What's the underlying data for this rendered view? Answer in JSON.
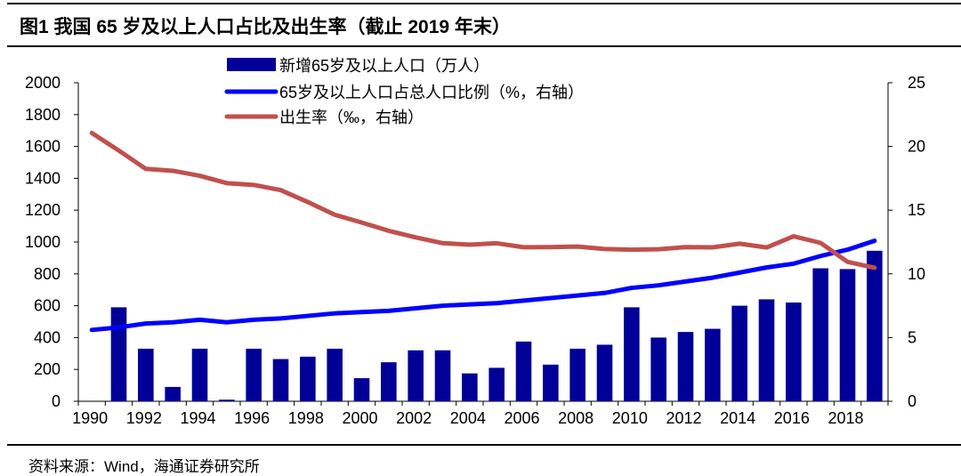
{
  "title": "图1  我国 65 岁及以上人口占比及出生率（截止 2019 年末）",
  "source": "资料来源：Wind，海通证券研究所",
  "chart_data": {
    "type": "bar+line",
    "categories": [
      "1990",
      "1991",
      "1992",
      "1993",
      "1994",
      "1995",
      "1996",
      "1997",
      "1998",
      "1999",
      "2000",
      "2001",
      "2002",
      "2003",
      "2004",
      "2005",
      "2006",
      "2007",
      "2008",
      "2009",
      "2010",
      "2011",
      "2012",
      "2013",
      "2014",
      "2015",
      "2016",
      "2017",
      "2018",
      "2019"
    ],
    "x_tick_labels": [
      "1990",
      "1992",
      "1994",
      "1996",
      "1998",
      "2000",
      "2002",
      "2004",
      "2006",
      "2008",
      "2010",
      "2012",
      "2014",
      "2016",
      "2018"
    ],
    "y_left": {
      "range": [
        0,
        2000
      ],
      "ticks": [
        "0",
        "200",
        "400",
        "600",
        "800",
        "1000",
        "1200",
        "1400",
        "1600",
        "1800",
        "2000"
      ]
    },
    "y_right": {
      "range": [
        0,
        25
      ],
      "ticks": [
        "0",
        "5",
        "10",
        "15",
        "20",
        "25"
      ]
    },
    "grid": false,
    "legend_placement": "top-center",
    "series": [
      {
        "name": "新增65岁及以上人口（万人）",
        "type": "bar",
        "axis": "left",
        "color": "#000099",
        "values": [
          null,
          590,
          330,
          90,
          330,
          10,
          330,
          265,
          280,
          330,
          145,
          245,
          320,
          320,
          175,
          210,
          375,
          230,
          330,
          355,
          590,
          400,
          435,
          455,
          600,
          640,
          620,
          835,
          830,
          945
        ]
      },
      {
        "name": "65岁及以上人口占总人口比例（%，右轴）",
        "type": "line",
        "axis": "right",
        "color": "#0000FF",
        "values": [
          5.6,
          5.8,
          6.1,
          6.2,
          6.4,
          6.2,
          6.4,
          6.5,
          6.7,
          6.9,
          7.0,
          7.1,
          7.3,
          7.5,
          7.6,
          7.7,
          7.9,
          8.1,
          8.3,
          8.5,
          8.9,
          9.1,
          9.4,
          9.7,
          10.1,
          10.5,
          10.8,
          11.4,
          11.9,
          12.6
        ]
      },
      {
        "name": "出生率（‰，右轴）",
        "type": "line",
        "axis": "right",
        "color": "#C0504D",
        "values": [
          21.06,
          19.68,
          18.24,
          18.09,
          17.7,
          17.12,
          16.98,
          16.57,
          15.64,
          14.64,
          14.03,
          13.38,
          12.86,
          12.41,
          12.29,
          12.4,
          12.09,
          12.1,
          12.14,
          11.95,
          11.9,
          11.93,
          12.1,
          12.08,
          12.37,
          12.07,
          12.95,
          12.43,
          10.94,
          10.48
        ]
      }
    ]
  }
}
